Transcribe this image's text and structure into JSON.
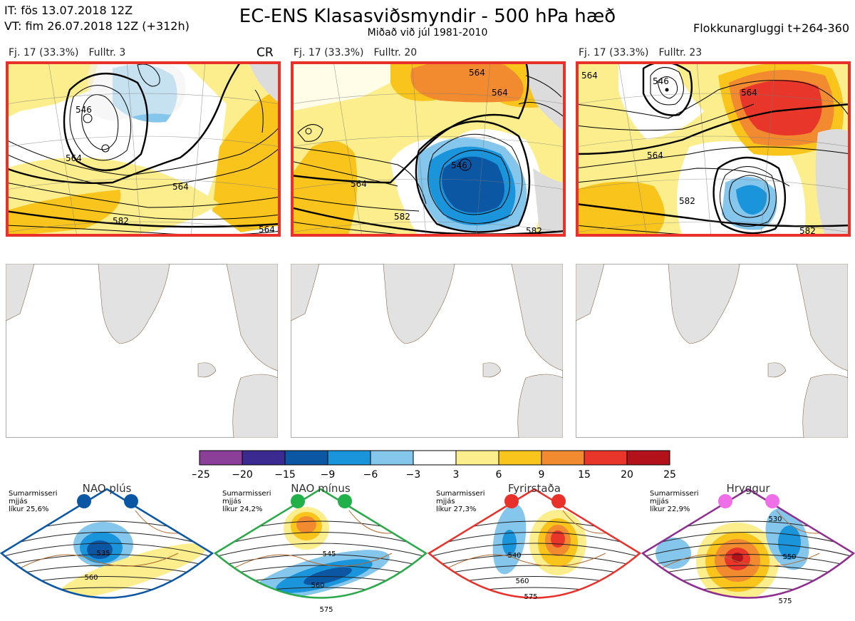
{
  "header": {
    "initial_time": "IT: fös 13.07.2018 12Z",
    "valid_time": "VT: fim 26.07.2018 12Z  (+312h)",
    "title": "EC-ENS Klasasviðsmyndir - 500 hPa hæð",
    "subtitle": "Miðað við júl 1981-2010",
    "window": "Flokkunargluggi t+264-360"
  },
  "clusters": [
    {
      "count_label": "Fj. 17 (33.3%)",
      "rep_label": "Fulltr. 3",
      "tag": "CR",
      "contour_labels": [
        "546",
        "564",
        "564",
        "582",
        "564"
      ]
    },
    {
      "count_label": "Fj. 17 (33.3%)",
      "rep_label": "Fulltr. 20",
      "tag": "",
      "contour_labels": [
        "564",
        "564",
        "546",
        "564",
        "582",
        "582"
      ]
    },
    {
      "count_label": "Fj. 17 (33.3%)",
      "rep_label": "Fulltr. 23",
      "tag": "",
      "contour_labels": [
        "564",
        "546",
        "564",
        "564",
        "582",
        "582"
      ]
    }
  ],
  "colorbar": {
    "ticks": [
      "−25",
      "−20",
      "−15",
      "−9",
      "−6",
      "−3",
      "3",
      "6",
      "9",
      "15",
      "20",
      "25"
    ],
    "colors": [
      "#8b3f98",
      "#3b2a8f",
      "#0b57a4",
      "#1a94db",
      "#85c7ec",
      "#ffffff",
      "#fdee8d",
      "#f9c51c",
      "#f28b30",
      "#e8362b",
      "#b3121b"
    ]
  },
  "regimes": [
    {
      "name": "NAO plús",
      "prob_line1": "Sumarmisseri",
      "prob_line2": "mjjás",
      "prob_line3": "líkur 25,6%",
      "color": "#0b57a4",
      "dot_color": "#0b57a4",
      "labels": [
        "535",
        "560"
      ]
    },
    {
      "name": "NAO mínus",
      "prob_line1": "Sumarmisseri",
      "prob_line2": "mjjás",
      "prob_line3": "líkur 24,2%",
      "color": "#2aa84a",
      "dot_color": "#22b04b",
      "labels": [
        "545",
        "560",
        "575"
      ]
    },
    {
      "name": "Fyrirstaða",
      "prob_line1": "Sumarmisseri",
      "prob_line2": "mjjás",
      "prob_line3": "líkur 27,3%",
      "color": "#e8312a",
      "dot_color": "#e8312a",
      "labels": [
        "540",
        "560",
        "575"
      ]
    },
    {
      "name": "Hryggur",
      "prob_line1": "Sumarmisseri",
      "prob_line2": "mjjás",
      "prob_line3": "líkur 22,9%",
      "color": "#8e2e8f",
      "dot_color": "#ee6fe8",
      "labels": [
        "530",
        "550",
        "575"
      ]
    }
  ]
}
